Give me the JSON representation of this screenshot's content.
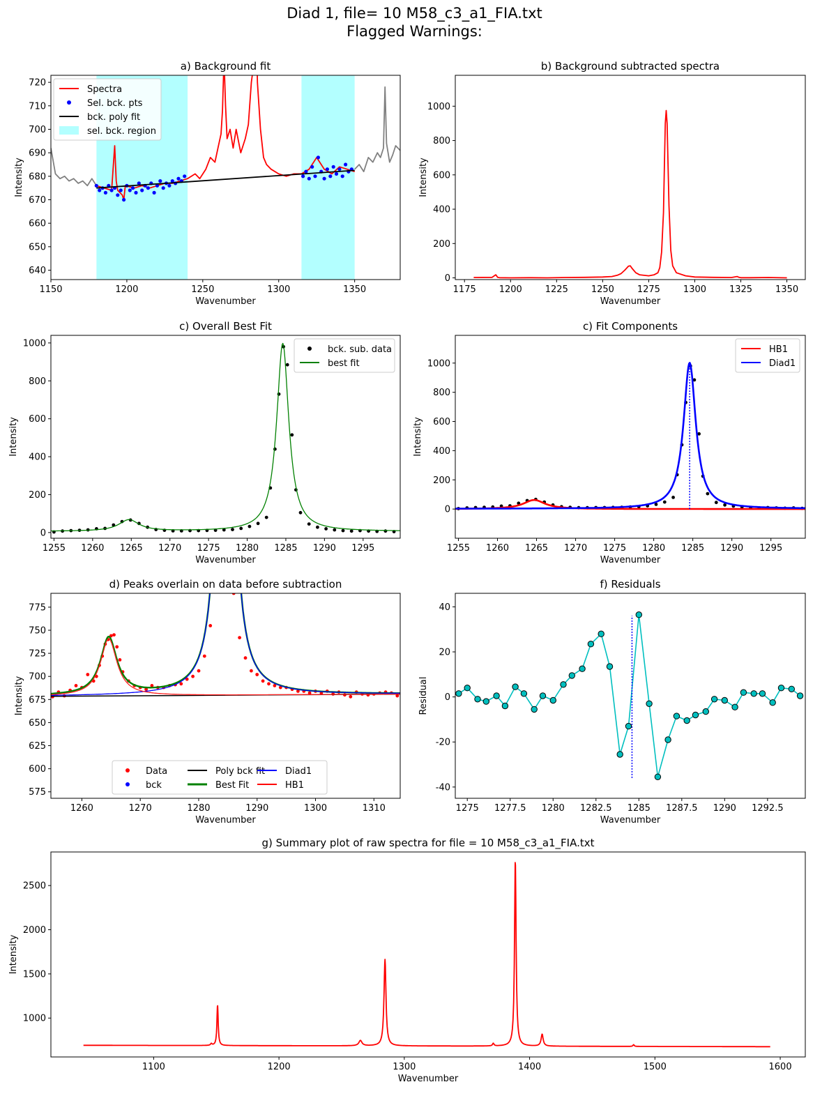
{
  "figure": {
    "title_line1": "Diad 1, file= 10 M58_c3_a1_FIA.txt",
    "title_line2": "Flagged Warnings:"
  },
  "chart_data": [
    {
      "id": "a",
      "type": "line",
      "title": "a) Background fit",
      "xlabel": "Wavenumber",
      "ylabel": "Intensity",
      "xlim": [
        1150,
        1380
      ],
      "ylim": [
        636,
        723
      ],
      "xticks": [
        1150,
        1200,
        1250,
        1300,
        1350
      ],
      "yticks": [
        640,
        650,
        660,
        670,
        680,
        690,
        700,
        710,
        720
      ],
      "grid": false,
      "legend_position": "upper left",
      "legend": [
        {
          "label": "Spectra",
          "kind": "line",
          "color": "#ff0000"
        },
        {
          "label": "Sel. bck. pts",
          "kind": "dot",
          "color": "#0000ff"
        },
        {
          "label": "bck. poly fit",
          "kind": "line",
          "color": "#000000"
        },
        {
          "label": "sel. bck. region",
          "kind": "patch",
          "color": "#b3ffff"
        }
      ],
      "regions": [
        [
          1180,
          1240
        ],
        [
          1315,
          1350
        ]
      ],
      "poly_fit": {
        "x": [
          1180,
          1350
        ],
        "y": [
          675.0,
          682.5
        ]
      },
      "gray_raw": [
        {
          "x": [
            1150,
            1153,
            1156,
            1159,
            1162,
            1165,
            1168,
            1171,
            1174,
            1177,
            1180
          ],
          "y": [
            692,
            681,
            679,
            680,
            678,
            679,
            677,
            678,
            676,
            679,
            676
          ]
        },
        {
          "x": [
            1350,
            1353,
            1356,
            1359,
            1362,
            1365,
            1367,
            1369,
            1370,
            1371,
            1373,
            1375,
            1377,
            1380
          ],
          "y": [
            683,
            685,
            682,
            688,
            686,
            690,
            688,
            692,
            718,
            694,
            686,
            689,
            693,
            691
          ]
        }
      ],
      "spectra": {
        "x": [
          1180,
          1185,
          1190,
          1192,
          1193,
          1194,
          1197,
          1198,
          1199,
          1205,
          1210,
          1215,
          1220,
          1225,
          1230,
          1235,
          1240,
          1245,
          1248,
          1252,
          1255,
          1258,
          1260,
          1262,
          1263,
          1264,
          1265,
          1266,
          1268,
          1270,
          1272,
          1275,
          1278,
          1280,
          1282,
          1284,
          1285,
          1286,
          1288,
          1290,
          1292,
          1295,
          1300,
          1305,
          1310,
          1315,
          1320,
          1325,
          1330,
          1335,
          1340,
          1345,
          1350
        ],
        "y": [
          676,
          675,
          674,
          693,
          678,
          674,
          672,
          670,
          676,
          675,
          676,
          675,
          676,
          677,
          677,
          678,
          679,
          681,
          679,
          683,
          688,
          686,
          692,
          698,
          708,
          730,
          710,
          696,
          700,
          692,
          700,
          690,
          696,
          702,
          720,
          730,
          760,
          720,
          700,
          688,
          685,
          683,
          681,
          680,
          681,
          681,
          683,
          688,
          683,
          681,
          684,
          683,
          682
        ]
      },
      "bck_points": {
        "x": [
          1180,
          1182,
          1184,
          1186,
          1188,
          1190,
          1192,
          1194,
          1196,
          1198,
          1200,
          1202,
          1204,
          1206,
          1208,
          1210,
          1212,
          1214,
          1216,
          1218,
          1220,
          1222,
          1224,
          1226,
          1228,
          1230,
          1232,
          1234,
          1236,
          1238,
          1316,
          1318,
          1320,
          1322,
          1324,
          1326,
          1328,
          1330,
          1332,
          1334,
          1336,
          1338,
          1340,
          1342,
          1344,
          1346,
          1348
        ],
        "y": [
          676,
          674,
          675,
          673,
          676,
          674,
          675,
          672,
          674,
          670,
          676,
          674,
          675,
          673,
          677,
          674,
          676,
          675,
          677,
          673,
          676,
          678,
          675,
          677,
          676,
          678,
          677,
          679,
          678,
          680,
          680,
          682,
          679,
          684,
          680,
          688,
          682,
          679,
          683,
          680,
          684,
          681,
          683,
          680,
          685,
          682,
          683
        ]
      }
    },
    {
      "id": "b",
      "type": "line",
      "title": "b) Background subtracted spectra",
      "xlabel": "Wavenumber",
      "ylabel": "Intensity",
      "xlim": [
        1170,
        1360
      ],
      "ylim": [
        -10,
        1180
      ],
      "xticks": [
        1175,
        1200,
        1225,
        1250,
        1275,
        1300,
        1325,
        1350
      ],
      "yticks": [
        0,
        200,
        400,
        600,
        800,
        1000
      ],
      "grid": false,
      "series": [
        {
          "name": "",
          "color": "#ff0000",
          "x": [
            1180,
            1190,
            1192,
            1193,
            1194,
            1200,
            1210,
            1220,
            1230,
            1240,
            1250,
            1255,
            1258,
            1260,
            1262,
            1264,
            1265,
            1266,
            1268,
            1270,
            1275,
            1278,
            1280,
            1281,
            1282,
            1283,
            1283.5,
            1284,
            1284.5,
            1285,
            1285.5,
            1286,
            1287,
            1288,
            1290,
            1295,
            1300,
            1310,
            1320,
            1323,
            1324,
            1325,
            1330,
            1340,
            1350
          ],
          "y": [
            2,
            3,
            18,
            3,
            1,
            0,
            1,
            0,
            2,
            3,
            5,
            8,
            15,
            25,
            45,
            68,
            70,
            55,
            30,
            18,
            12,
            18,
            30,
            60,
            150,
            380,
            650,
            900,
            975,
            900,
            650,
            420,
            160,
            70,
            30,
            12,
            5,
            3,
            2,
            8,
            3,
            1,
            1,
            2,
            0
          ]
        }
      ]
    },
    {
      "id": "c1",
      "type": "line",
      "title": "c) Overall Best Fit",
      "xlabel": "Wavenumber",
      "ylabel": "Intensity",
      "xlim": [
        1254.6,
        1299.8
      ],
      "ylim": [
        -30,
        1040
      ],
      "xticks": [
        1255,
        1260,
        1265,
        1270,
        1275,
        1280,
        1285,
        1290,
        1295
      ],
      "yticks": [
        0,
        200,
        400,
        600,
        800,
        1000
      ],
      "grid": false,
      "legend_position": "upper right",
      "legend": [
        {
          "label": "bck. sub. data",
          "kind": "dot",
          "color": "#000000"
        },
        {
          "label": "best fit",
          "kind": "line",
          "color": "#008000"
        }
      ],
      "best_fit": {
        "components": [
          {
            "center": 1284.6,
            "height": 992,
            "hwhm": 0.95
          },
          {
            "center": 1264.7,
            "height": 60,
            "hwhm": 1.6
          }
        ],
        "baseline": 6
      },
      "data_points": {
        "x": [
          1255.0,
          1256.1,
          1257.2,
          1258.3,
          1259.4,
          1260.5,
          1261.6,
          1262.7,
          1263.8,
          1264.9,
          1266.0,
          1267.1,
          1268.2,
          1269.3,
          1270.4,
          1271.5,
          1272.6,
          1273.7,
          1274.8,
          1275.9,
          1277.0,
          1278.1,
          1279.2,
          1280.3,
          1281.4,
          1282.5,
          1283.0,
          1283.6,
          1284.1,
          1284.7,
          1285.2,
          1285.8,
          1286.3,
          1286.9,
          1288.0,
          1289.1,
          1290.2,
          1291.3,
          1292.4,
          1293.5,
          1294.6,
          1295.7,
          1296.8,
          1297.9,
          1299.0
        ],
        "y": [
          3,
          8,
          10,
          12,
          14,
          20,
          22,
          40,
          58,
          66,
          48,
          28,
          16,
          12,
          9,
          9,
          10,
          10,
          11,
          12,
          14,
          16,
          22,
          32,
          48,
          80,
          235,
          440,
          730,
          980,
          885,
          515,
          225,
          105,
          45,
          28,
          20,
          14,
          10,
          8,
          10,
          8,
          6,
          8,
          5
        ]
      }
    },
    {
      "id": "c2",
      "type": "line",
      "title": "c) Fit Components",
      "xlabel": "Wavenumber",
      "ylabel": "Intensity",
      "xlim": [
        1254.6,
        1299.4
      ],
      "ylim": [
        -200,
        1190
      ],
      "xticks": [
        1255,
        1260,
        1265,
        1270,
        1275,
        1280,
        1285,
        1290,
        1295
      ],
      "yticks": [
        0,
        200,
        400,
        600,
        800,
        1000
      ],
      "grid": false,
      "legend_position": "upper right",
      "legend": [
        {
          "label": "HB1",
          "kind": "line",
          "color": "#ff0000"
        },
        {
          "label": "Diad1",
          "kind": "line",
          "color": "#0000ff"
        }
      ],
      "peak_center": 1284.6,
      "diad1": {
        "center": 1284.6,
        "height": 1000,
        "hwhm": 0.95,
        "baseline": 2
      },
      "hb1": {
        "center": 1264.7,
        "height": 62,
        "hwhm": 1.7,
        "baseline": 0
      }
    },
    {
      "id": "d",
      "type": "line",
      "title": "d) Peaks overlain on data before subtraction",
      "xlabel": "Wavenumber",
      "ylabel": "Intensity",
      "xlim": [
        1254.7,
        1314.5
      ],
      "ylim": [
        568,
        790
      ],
      "xticks": [
        1260,
        1270,
        1280,
        1290,
        1300,
        1310
      ],
      "yticks": [
        575,
        600,
        625,
        650,
        675,
        700,
        725,
        750,
        775
      ],
      "grid": false,
      "legend_position": "lower center",
      "legend": [
        {
          "label": "Data",
          "kind": "dot",
          "color": "#ff0000"
        },
        {
          "label": "bck",
          "kind": "dot",
          "color": "#0000ff"
        },
        {
          "label": "Poly bck fit",
          "kind": "line",
          "color": "#000000"
        },
        {
          "label": "Best Fit",
          "kind": "thickline",
          "color": "#008000"
        },
        {
          "label": "Diad1",
          "kind": "line",
          "color": "#0000ff"
        },
        {
          "label": "HB1",
          "kind": "line",
          "color": "#ff0000"
        }
      ],
      "poly_bck": {
        "x": [
          1254.7,
          1314.5
        ],
        "y": [
          678.5,
          680.8
        ]
      },
      "diad1": {
        "center": 1284.6,
        "height": 992,
        "hwhm": 0.95
      },
      "hb1": {
        "center": 1264.6,
        "height": 62,
        "hwhm": 1.7
      },
      "data_points": {
        "x": [
          1255.0,
          1256.0,
          1257.0,
          1258.0,
          1259.0,
          1260.0,
          1261.0,
          1262.0,
          1262.5,
          1263.0,
          1263.5,
          1264.0,
          1264.5,
          1265.0,
          1265.5,
          1266.0,
          1266.5,
          1267.0,
          1268.0,
          1269.0,
          1270.0,
          1271.0,
          1272.0,
          1273.0,
          1274.0,
          1275.0,
          1276.0,
          1277.0,
          1278.0,
          1279.0,
          1280.0,
          1281.0,
          1282.0,
          1283.0,
          1286.0,
          1287.0,
          1288.0,
          1289.0,
          1290.0,
          1291.0,
          1292.0,
          1293.0,
          1294.0,
          1295.0,
          1296.0,
          1297.0,
          1298.0,
          1299.0,
          1300.0,
          1301.0,
          1302.0,
          1303.0,
          1304.0,
          1305.0,
          1306.0,
          1307.0,
          1308.0,
          1309.0,
          1310.0,
          1311.0,
          1312.0,
          1313.0,
          1314.0
        ],
        "y": [
          678,
          683,
          679,
          685,
          690,
          688,
          702,
          695,
          700,
          712,
          722,
          735,
          740,
          744,
          745,
          732,
          718,
          705,
          695,
          690,
          688,
          686,
          690,
          688,
          688,
          690,
          691,
          692,
          697,
          700,
          706,
          722,
          755,
          800,
          790,
          742,
          720,
          706,
          702,
          695,
          692,
          690,
          688,
          688,
          686,
          684,
          684,
          682,
          684,
          682,
          684,
          681,
          683,
          680,
          678,
          683,
          681,
          680,
          681,
          682,
          683,
          682,
          679
        ]
      }
    },
    {
      "id": "f",
      "type": "line",
      "title": "f) Residuals",
      "xlabel": "Wavenumber",
      "ylabel": "Residual",
      "xlim": [
        1274.3,
        1294.7
      ],
      "ylim": [
        -45,
        46
      ],
      "xticks": [
        1275.0,
        1277.5,
        1280.0,
        1282.5,
        1285.0,
        1287.5,
        1290.0,
        1292.5
      ],
      "yticks": [
        -40,
        -20,
        0,
        20,
        40
      ],
      "grid": false,
      "peak_center": 1284.6,
      "residuals": {
        "x": [
          1274.5,
          1275.0,
          1275.6,
          1276.1,
          1276.7,
          1277.2,
          1277.8,
          1278.3,
          1278.9,
          1279.4,
          1280.0,
          1280.6,
          1281.1,
          1281.7,
          1282.2,
          1282.8,
          1283.3,
          1283.9,
          1284.4,
          1285.0,
          1285.6,
          1286.1,
          1286.7,
          1287.2,
          1287.8,
          1288.3,
          1288.9,
          1289.4,
          1290.0,
          1290.6,
          1291.1,
          1291.7,
          1292.2,
          1292.8,
          1293.3,
          1293.9,
          1294.4
        ],
        "y": [
          1.5,
          4,
          -1,
          -2,
          0.5,
          -4,
          4.5,
          1.5,
          -5.5,
          0.5,
          -1.5,
          5.5,
          9.5,
          12.5,
          23.5,
          28,
          13.5,
          -25.5,
          -13,
          36.5,
          -3,
          -35.5,
          -19,
          -8.5,
          -10.5,
          -8,
          -6.5,
          -1,
          -1.5,
          -4.5,
          2,
          1.5,
          1.5,
          -2.5,
          4,
          3.5,
          0.5
        ]
      }
    },
    {
      "id": "g",
      "type": "line",
      "title": "g) Summary plot of raw spectra for file = 10 M58_c3_a1_FIA.txt",
      "xlabel": "Wavenumber",
      "ylabel": "Intensity",
      "xlim": [
        1018,
        1620
      ],
      "ylim": [
        560,
        2880
      ],
      "xticks": [
        1100,
        1200,
        1300,
        1400,
        1500,
        1600
      ],
      "yticks": [
        1000,
        1500,
        2000,
        2500
      ],
      "grid": false,
      "raw_spectrum": {
        "x_range": [
          1044,
          1592
        ],
        "baseline": [
          692,
          676
        ],
        "peaks": [
          {
            "center": 1151,
            "height": 465,
            "hwhm": 0.6
          },
          {
            "center": 1146,
            "height": 20,
            "hwhm": 0.7
          },
          {
            "center": 1265,
            "height": 60,
            "hwhm": 1.5
          },
          {
            "center": 1284.6,
            "height": 980,
            "hwhm": 0.95
          },
          {
            "center": 1371,
            "height": 30,
            "hwhm": 0.7
          },
          {
            "center": 1388.6,
            "height": 2120,
            "hwhm": 0.75
          },
          {
            "center": 1410,
            "height": 135,
            "hwhm": 1.0
          },
          {
            "center": 1483,
            "height": 20,
            "hwhm": 0.6
          }
        ]
      }
    }
  ]
}
